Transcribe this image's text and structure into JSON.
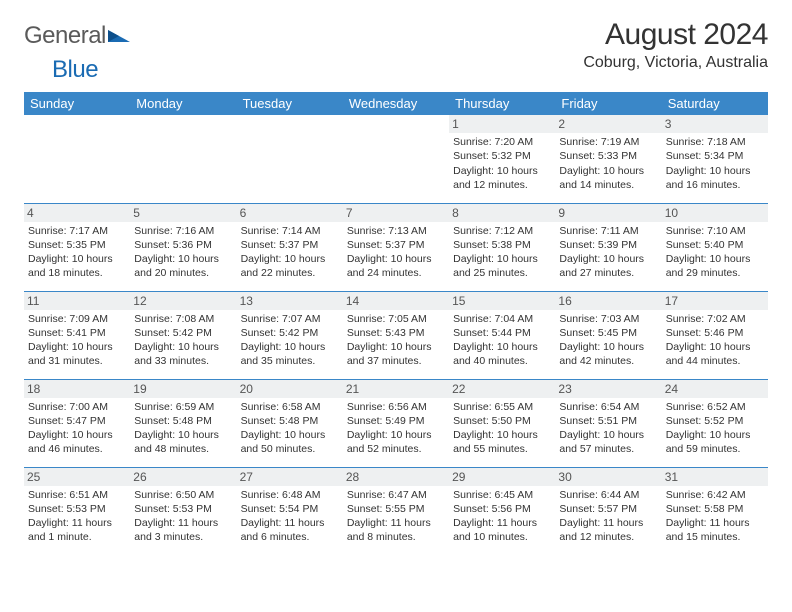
{
  "logo": {
    "word1": "General",
    "word2": "Blue"
  },
  "title": "August 2024",
  "location": "Coburg, Victoria, Australia",
  "colors": {
    "header_bg": "#3a87c8",
    "header_text": "#ffffff",
    "daynum_bg": "#eef0f1",
    "row_border": "#3a87c8",
    "body_text": "#333333",
    "logo_grey": "#5a5a5a",
    "logo_blue": "#1a6bb3"
  },
  "weekdays": [
    "Sunday",
    "Monday",
    "Tuesday",
    "Wednesday",
    "Thursday",
    "Friday",
    "Saturday"
  ],
  "weeks": [
    [
      {
        "day": "",
        "lines": []
      },
      {
        "day": "",
        "lines": []
      },
      {
        "day": "",
        "lines": []
      },
      {
        "day": "",
        "lines": []
      },
      {
        "day": "1",
        "lines": [
          "Sunrise: 7:20 AM",
          "Sunset: 5:32 PM",
          "Daylight: 10 hours",
          "and 12 minutes."
        ]
      },
      {
        "day": "2",
        "lines": [
          "Sunrise: 7:19 AM",
          "Sunset: 5:33 PM",
          "Daylight: 10 hours",
          "and 14 minutes."
        ]
      },
      {
        "day": "3",
        "lines": [
          "Sunrise: 7:18 AM",
          "Sunset: 5:34 PM",
          "Daylight: 10 hours",
          "and 16 minutes."
        ]
      }
    ],
    [
      {
        "day": "4",
        "lines": [
          "Sunrise: 7:17 AM",
          "Sunset: 5:35 PM",
          "Daylight: 10 hours",
          "and 18 minutes."
        ]
      },
      {
        "day": "5",
        "lines": [
          "Sunrise: 7:16 AM",
          "Sunset: 5:36 PM",
          "Daylight: 10 hours",
          "and 20 minutes."
        ]
      },
      {
        "day": "6",
        "lines": [
          "Sunrise: 7:14 AM",
          "Sunset: 5:37 PM",
          "Daylight: 10 hours",
          "and 22 minutes."
        ]
      },
      {
        "day": "7",
        "lines": [
          "Sunrise: 7:13 AM",
          "Sunset: 5:37 PM",
          "Daylight: 10 hours",
          "and 24 minutes."
        ]
      },
      {
        "day": "8",
        "lines": [
          "Sunrise: 7:12 AM",
          "Sunset: 5:38 PM",
          "Daylight: 10 hours",
          "and 25 minutes."
        ]
      },
      {
        "day": "9",
        "lines": [
          "Sunrise: 7:11 AM",
          "Sunset: 5:39 PM",
          "Daylight: 10 hours",
          "and 27 minutes."
        ]
      },
      {
        "day": "10",
        "lines": [
          "Sunrise: 7:10 AM",
          "Sunset: 5:40 PM",
          "Daylight: 10 hours",
          "and 29 minutes."
        ]
      }
    ],
    [
      {
        "day": "11",
        "lines": [
          "Sunrise: 7:09 AM",
          "Sunset: 5:41 PM",
          "Daylight: 10 hours",
          "and 31 minutes."
        ]
      },
      {
        "day": "12",
        "lines": [
          "Sunrise: 7:08 AM",
          "Sunset: 5:42 PM",
          "Daylight: 10 hours",
          "and 33 minutes."
        ]
      },
      {
        "day": "13",
        "lines": [
          "Sunrise: 7:07 AM",
          "Sunset: 5:42 PM",
          "Daylight: 10 hours",
          "and 35 minutes."
        ]
      },
      {
        "day": "14",
        "lines": [
          "Sunrise: 7:05 AM",
          "Sunset: 5:43 PM",
          "Daylight: 10 hours",
          "and 37 minutes."
        ]
      },
      {
        "day": "15",
        "lines": [
          "Sunrise: 7:04 AM",
          "Sunset: 5:44 PM",
          "Daylight: 10 hours",
          "and 40 minutes."
        ]
      },
      {
        "day": "16",
        "lines": [
          "Sunrise: 7:03 AM",
          "Sunset: 5:45 PM",
          "Daylight: 10 hours",
          "and 42 minutes."
        ]
      },
      {
        "day": "17",
        "lines": [
          "Sunrise: 7:02 AM",
          "Sunset: 5:46 PM",
          "Daylight: 10 hours",
          "and 44 minutes."
        ]
      }
    ],
    [
      {
        "day": "18",
        "lines": [
          "Sunrise: 7:00 AM",
          "Sunset: 5:47 PM",
          "Daylight: 10 hours",
          "and 46 minutes."
        ]
      },
      {
        "day": "19",
        "lines": [
          "Sunrise: 6:59 AM",
          "Sunset: 5:48 PM",
          "Daylight: 10 hours",
          "and 48 minutes."
        ]
      },
      {
        "day": "20",
        "lines": [
          "Sunrise: 6:58 AM",
          "Sunset: 5:48 PM",
          "Daylight: 10 hours",
          "and 50 minutes."
        ]
      },
      {
        "day": "21",
        "lines": [
          "Sunrise: 6:56 AM",
          "Sunset: 5:49 PM",
          "Daylight: 10 hours",
          "and 52 minutes."
        ]
      },
      {
        "day": "22",
        "lines": [
          "Sunrise: 6:55 AM",
          "Sunset: 5:50 PM",
          "Daylight: 10 hours",
          "and 55 minutes."
        ]
      },
      {
        "day": "23",
        "lines": [
          "Sunrise: 6:54 AM",
          "Sunset: 5:51 PM",
          "Daylight: 10 hours",
          "and 57 minutes."
        ]
      },
      {
        "day": "24",
        "lines": [
          "Sunrise: 6:52 AM",
          "Sunset: 5:52 PM",
          "Daylight: 10 hours",
          "and 59 minutes."
        ]
      }
    ],
    [
      {
        "day": "25",
        "lines": [
          "Sunrise: 6:51 AM",
          "Sunset: 5:53 PM",
          "Daylight: 11 hours",
          "and 1 minute."
        ]
      },
      {
        "day": "26",
        "lines": [
          "Sunrise: 6:50 AM",
          "Sunset: 5:53 PM",
          "Daylight: 11 hours",
          "and 3 minutes."
        ]
      },
      {
        "day": "27",
        "lines": [
          "Sunrise: 6:48 AM",
          "Sunset: 5:54 PM",
          "Daylight: 11 hours",
          "and 6 minutes."
        ]
      },
      {
        "day": "28",
        "lines": [
          "Sunrise: 6:47 AM",
          "Sunset: 5:55 PM",
          "Daylight: 11 hours",
          "and 8 minutes."
        ]
      },
      {
        "day": "29",
        "lines": [
          "Sunrise: 6:45 AM",
          "Sunset: 5:56 PM",
          "Daylight: 11 hours",
          "and 10 minutes."
        ]
      },
      {
        "day": "30",
        "lines": [
          "Sunrise: 6:44 AM",
          "Sunset: 5:57 PM",
          "Daylight: 11 hours",
          "and 12 minutes."
        ]
      },
      {
        "day": "31",
        "lines": [
          "Sunrise: 6:42 AM",
          "Sunset: 5:58 PM",
          "Daylight: 11 hours",
          "and 15 minutes."
        ]
      }
    ]
  ]
}
